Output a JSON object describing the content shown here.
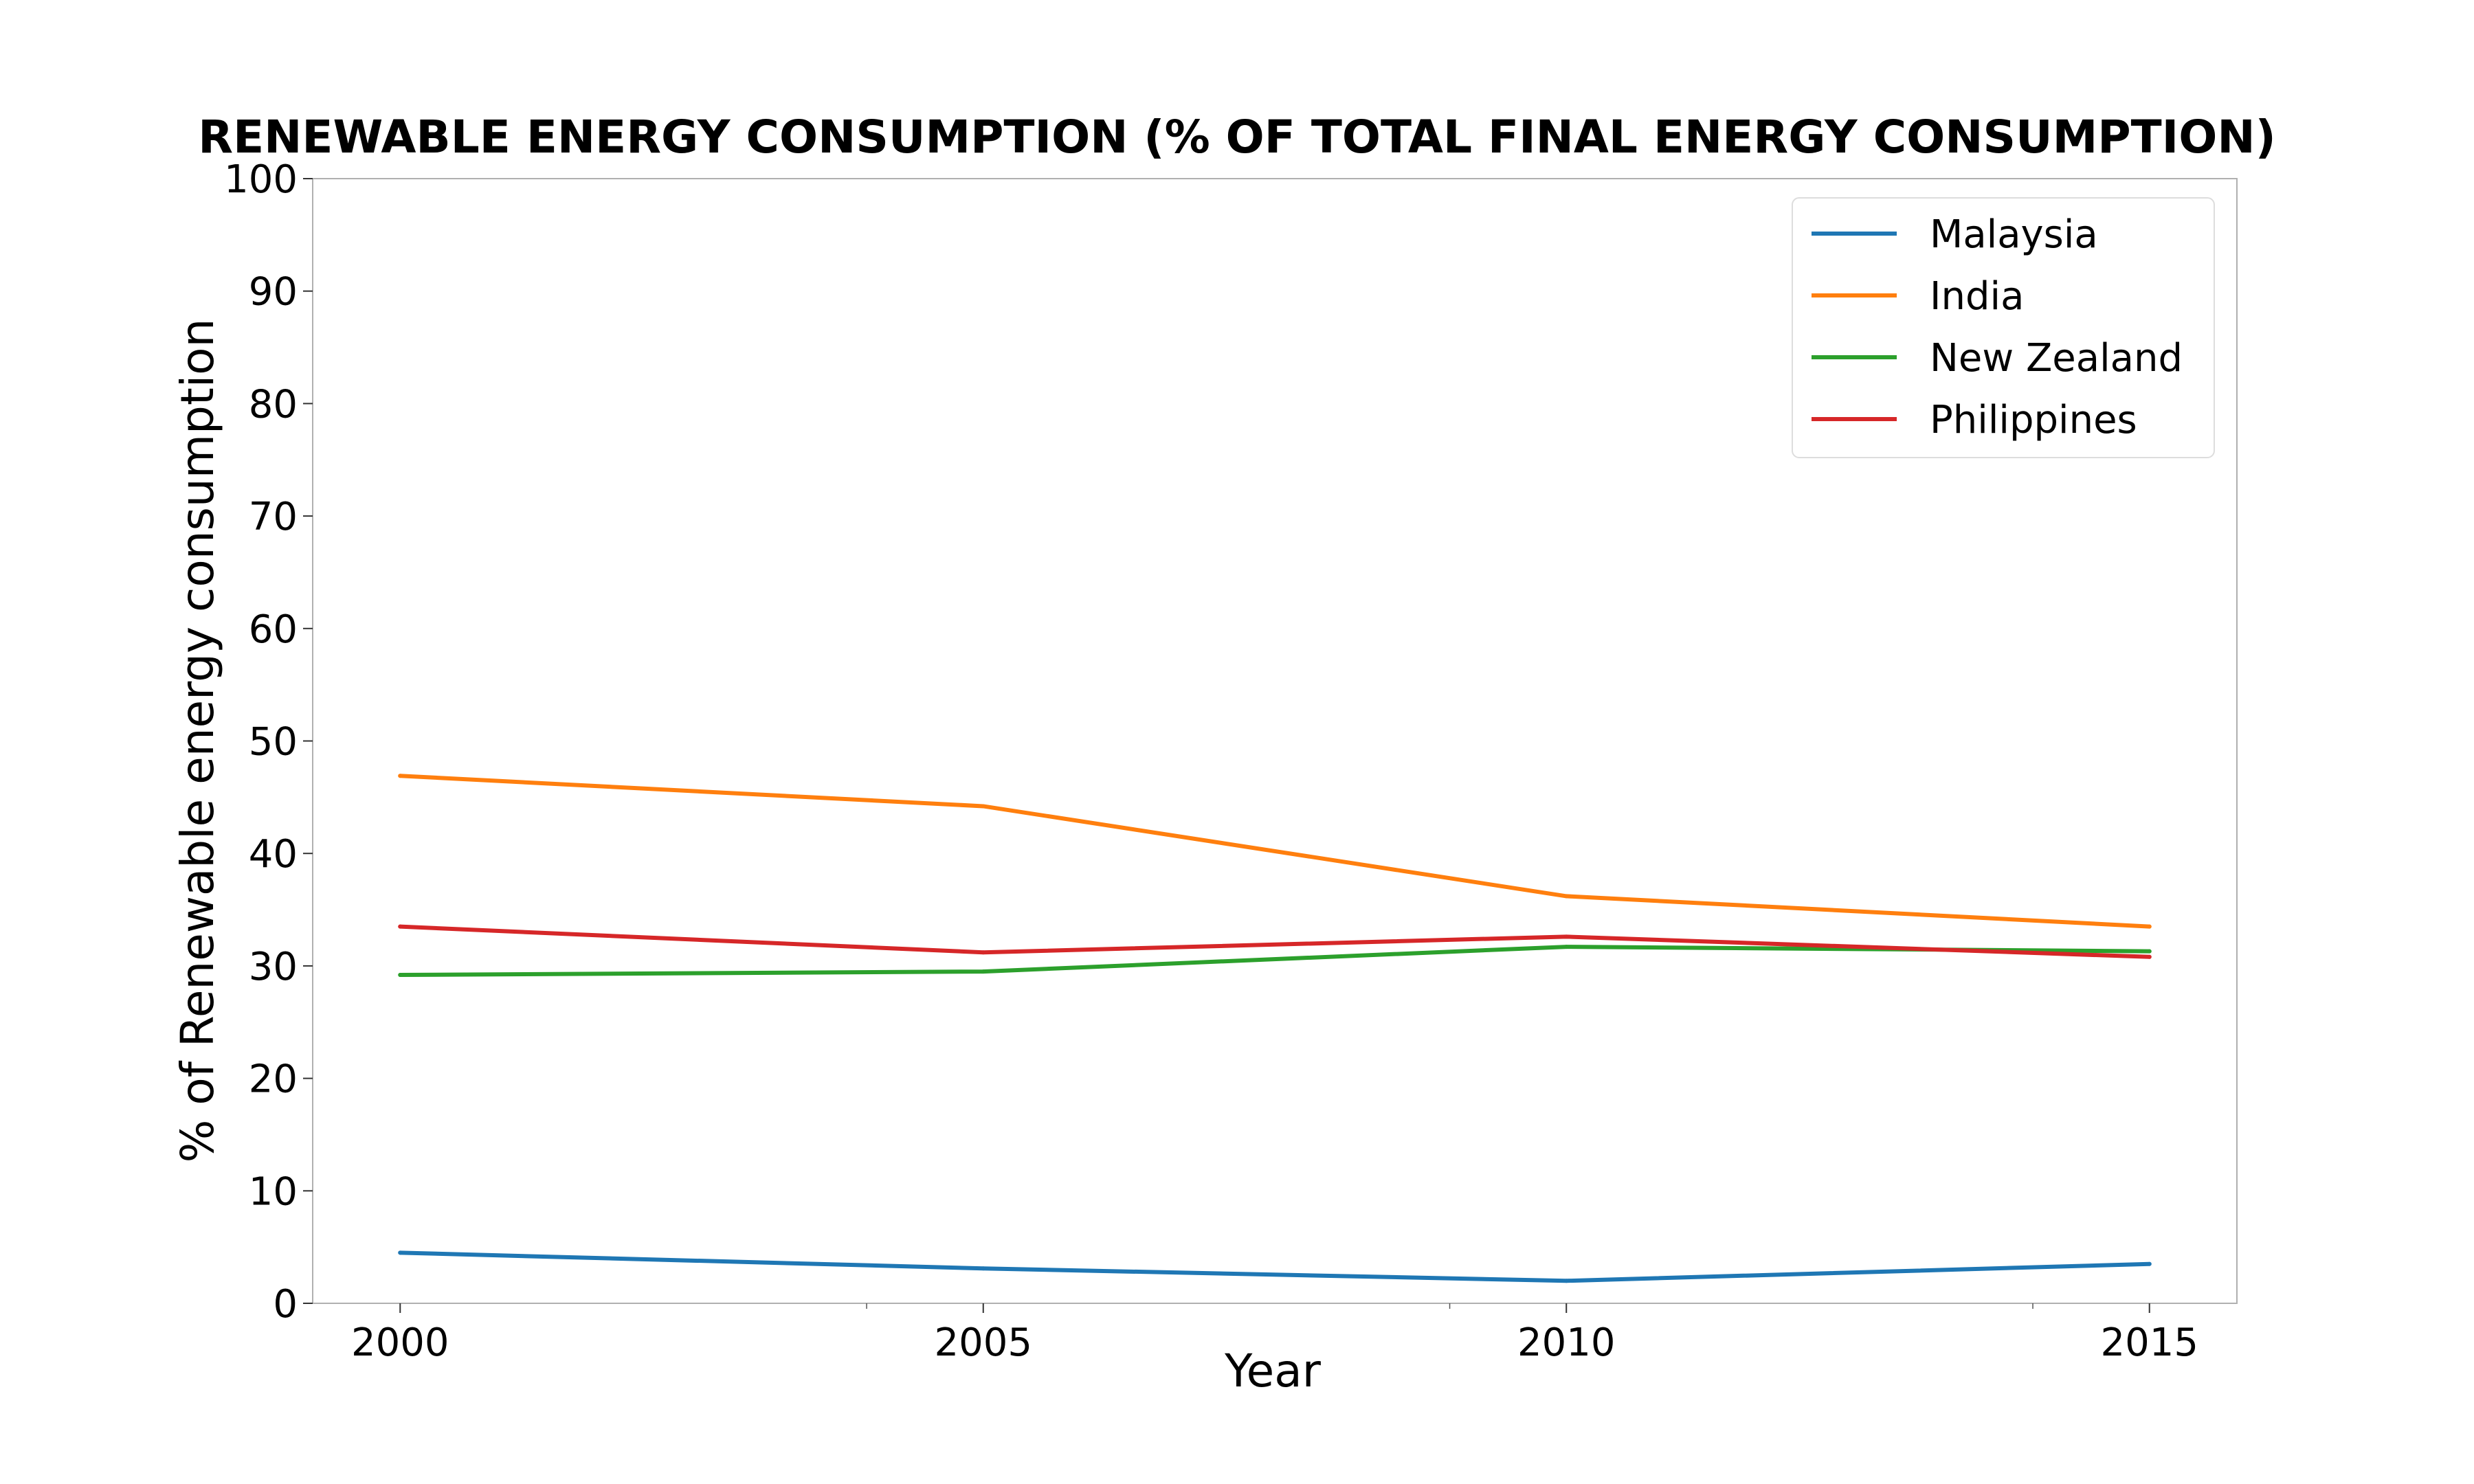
{
  "chart_data": {
    "type": "line",
    "title": "RENEWABLE ENERGY CONSUMPTION (% OF TOTAL FINAL ENERGY CONSUMPTION)",
    "xlabel": "Year",
    "ylabel": "% of Renewable energy consumption",
    "x": [
      2000,
      2005,
      2010,
      2015
    ],
    "xlim": [
      1999.25,
      2015.75
    ],
    "ylim": [
      0,
      100
    ],
    "x_ticks": [
      "2000",
      "2005",
      "2010",
      "2015"
    ],
    "y_ticks": [
      "0",
      "10",
      "20",
      "30",
      "40",
      "50",
      "60",
      "70",
      "80",
      "90",
      "100"
    ],
    "grid": false,
    "legend_position": "top-right",
    "series": [
      {
        "name": "Malaysia",
        "color": "#1f77b4",
        "values": [
          4.5,
          3.1,
          2.0,
          3.5
        ]
      },
      {
        "name": "India",
        "color": "#ff7f0e",
        "values": [
          46.9,
          44.2,
          36.2,
          33.5
        ]
      },
      {
        "name": "New Zealand",
        "color": "#2ca02c",
        "values": [
          29.2,
          29.5,
          31.7,
          31.3
        ]
      },
      {
        "name": "Philippines",
        "color": "#d62728",
        "values": [
          33.5,
          31.2,
          32.6,
          30.8
        ]
      }
    ]
  }
}
